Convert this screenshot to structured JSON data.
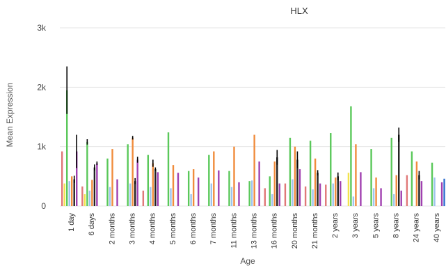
{
  "chart_data": {
    "type": "bar",
    "title": "HLX",
    "xlabel": "Age",
    "ylabel": "Mean Expression",
    "ylim": [
      0,
      3000
    ],
    "yticks": [
      {
        "value": 0,
        "label": "0"
      },
      {
        "value": 1000,
        "label": "1k"
      },
      {
        "value": 2000,
        "label": "2k"
      },
      {
        "value": 3000,
        "label": "3k"
      }
    ],
    "grid": true,
    "legend": "none",
    "series_colors": [
      "#e07878",
      "#f2e34c",
      "#5ac85a",
      "#9fc4ee",
      "#f08c3c",
      "#222222",
      "#a040b0"
    ],
    "categories": [
      "1 day",
      "6 days",
      "2 months",
      "3 months",
      "4 months",
      "5 months",
      "6 months",
      "7 months",
      "11 months",
      "13 months",
      "16 months",
      "20 months",
      "21 months",
      "2 years",
      "3 years",
      "5 years",
      "8 years",
      "24 years",
      "40 years"
    ],
    "groups": [
      {
        "category": "1 day",
        "bars": [
          {
            "series": 0,
            "value": 920
          },
          {
            "series": 1,
            "value": 380
          },
          {
            "series": 2,
            "value": 1950,
            "err": 800
          },
          {
            "series": 3,
            "value": 420
          },
          {
            "series": 4,
            "value": 500
          },
          {
            "series": 5,
            "value": 450,
            "err": 120
          },
          {
            "series": 6,
            "value": 920,
            "err": 560
          }
        ]
      },
      {
        "category": "6 days",
        "bars": [
          {
            "series": 0,
            "value": 330
          },
          {
            "series": 1,
            "value": 200
          },
          {
            "series": 2,
            "value": 1080,
            "err": 90
          },
          {
            "series": 3,
            "value": 260
          },
          {
            "series": 4,
            "value": 440
          },
          {
            "series": 5,
            "value": 650,
            "err": 100
          },
          {
            "series": 6,
            "value": 720,
            "err": 60
          }
        ]
      },
      {
        "category": "2 months",
        "bars": [
          {
            "series": 2,
            "value": 800
          },
          {
            "series": 3,
            "value": 320
          },
          {
            "series": 4,
            "value": 960
          },
          {
            "series": 6,
            "value": 450
          }
        ]
      },
      {
        "category": "3 months",
        "bars": [
          {
            "series": 2,
            "value": 1040
          },
          {
            "series": 3,
            "value": 380
          },
          {
            "series": 4,
            "value": 1150,
            "err": 60
          },
          {
            "series": 5,
            "value": 420,
            "err": 100
          },
          {
            "series": 6,
            "value": 780,
            "err": 100
          }
        ]
      },
      {
        "category": "4 months",
        "bars": [
          {
            "series": 0,
            "value": 260
          },
          {
            "series": 2,
            "value": 860
          },
          {
            "series": 3,
            "value": 320
          },
          {
            "series": 4,
            "value": 720,
            "err": 120
          },
          {
            "series": 5,
            "value": 620,
            "err": 60
          },
          {
            "series": 6,
            "value": 570
          }
        ]
      },
      {
        "category": "5 months",
        "bars": [
          {
            "series": 2,
            "value": 1240
          },
          {
            "series": 3,
            "value": 300
          },
          {
            "series": 4,
            "value": 690
          },
          {
            "series": 6,
            "value": 560
          }
        ]
      },
      {
        "category": "6 months",
        "bars": [
          {
            "series": 2,
            "value": 590
          },
          {
            "series": 3,
            "value": 200
          },
          {
            "series": 4,
            "value": 620
          },
          {
            "series": 6,
            "value": 480
          }
        ]
      },
      {
        "category": "7 months",
        "bars": [
          {
            "series": 2,
            "value": 860
          },
          {
            "series": 3,
            "value": 380
          },
          {
            "series": 4,
            "value": 920
          },
          {
            "series": 6,
            "value": 600
          }
        ]
      },
      {
        "category": "11 months",
        "bars": [
          {
            "series": 2,
            "value": 590
          },
          {
            "series": 3,
            "value": 320
          },
          {
            "series": 4,
            "value": 1000
          },
          {
            "series": 6,
            "value": 400
          }
        ]
      },
      {
        "category": "13 months",
        "bars": [
          {
            "series": 2,
            "value": 420
          },
          {
            "series": 3,
            "value": 430
          },
          {
            "series": 4,
            "value": 1200
          },
          {
            "series": 6,
            "value": 750
          }
        ]
      },
      {
        "category": "16 months",
        "bars": [
          {
            "series": 0,
            "value": 300
          },
          {
            "series": 2,
            "value": 500
          },
          {
            "series": 3,
            "value": 200
          },
          {
            "series": 4,
            "value": 750
          },
          {
            "series": 5,
            "value": 820,
            "err": 250
          },
          {
            "series": 6,
            "value": 380
          }
        ]
      },
      {
        "category": "20 months",
        "bars": [
          {
            "series": 0,
            "value": 380
          },
          {
            "series": 2,
            "value": 1150
          },
          {
            "series": 3,
            "value": 450
          },
          {
            "series": 4,
            "value": 1000
          },
          {
            "series": 5,
            "value": 780,
            "err": 280
          },
          {
            "series": 6,
            "value": 620
          }
        ]
      },
      {
        "category": "21 months",
        "bars": [
          {
            "series": 0,
            "value": 330
          },
          {
            "series": 2,
            "value": 1100
          },
          {
            "series": 3,
            "value": 280
          },
          {
            "series": 4,
            "value": 800
          },
          {
            "series": 5,
            "value": 560,
            "err": 90
          },
          {
            "series": 6,
            "value": 380
          }
        ]
      },
      {
        "category": "2 years",
        "bars": [
          {
            "series": 0,
            "value": 360
          },
          {
            "series": 2,
            "value": 1230
          },
          {
            "series": 3,
            "value": 380
          },
          {
            "series": 4,
            "value": 480
          },
          {
            "series": 5,
            "value": 500,
            "err": 130
          },
          {
            "series": 6,
            "value": 420
          }
        ]
      },
      {
        "category": "3 years",
        "bars": [
          {
            "series": 1,
            "value": 560
          },
          {
            "series": 2,
            "value": 1680
          },
          {
            "series": 3,
            "value": 160
          },
          {
            "series": 4,
            "value": 1040
          },
          {
            "series": 6,
            "value": 570
          }
        ]
      },
      {
        "category": "5 years",
        "bars": [
          {
            "series": 2,
            "value": 960
          },
          {
            "series": 3,
            "value": 300
          },
          {
            "series": 4,
            "value": 480
          },
          {
            "series": 6,
            "value": 300
          }
        ]
      },
      {
        "category": "8 years",
        "bars": [
          {
            "series": 2,
            "value": 1150
          },
          {
            "series": 3,
            "value": 200
          },
          {
            "series": 5,
            "value": 1200,
            "err": 240
          },
          {
            "series": 4,
            "value": 520
          },
          {
            "series": 6,
            "value": 260
          }
        ]
      },
      {
        "category": "24 years",
        "bars": [
          {
            "series": 0,
            "value": 520
          },
          {
            "series": 2,
            "value": 920
          },
          {
            "series": 4,
            "value": 750
          },
          {
            "series": 5,
            "value": 520,
            "err": 140
          },
          {
            "series": 6,
            "value": 420
          }
        ]
      },
      {
        "category": "40 years",
        "bars": [
          {
            "series": 2,
            "value": 730
          },
          {
            "series": 3,
            "value": 480
          },
          {
            "series": 7,
            "value": 460
          },
          {
            "series": 6,
            "value": 400
          }
        ]
      }
    ]
  }
}
